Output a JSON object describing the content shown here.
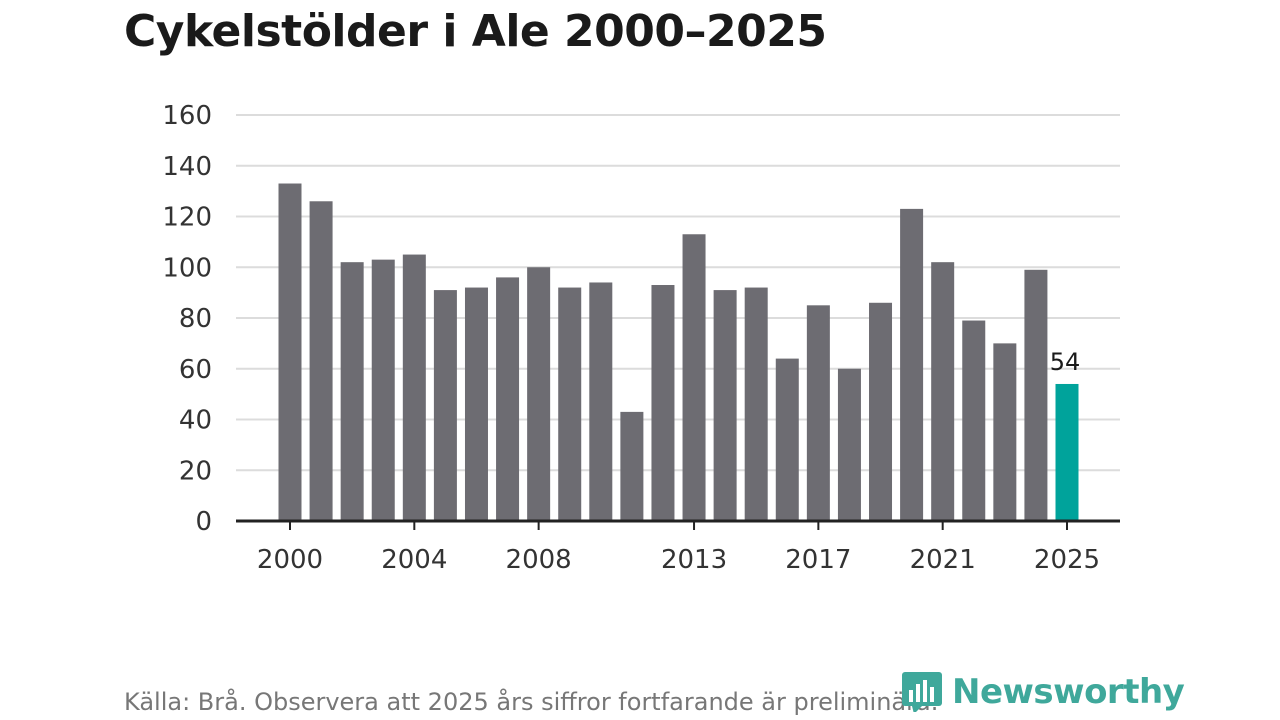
{
  "title": "Cykelstölder i Ale 2000–2025",
  "source": "Källa: Brå. Observera att 2025 års siffror fortfarande är preliminära.",
  "brand": {
    "name": "Newsworthy",
    "icon": "newsworthy-logo-icon",
    "color": "#3fa89b"
  },
  "chart_data": {
    "type": "bar",
    "title": "Cykelstölder i Ale 2000–2025",
    "xlabel": "",
    "ylabel": "",
    "categories": [
      "2000",
      "2001",
      "2002",
      "2003",
      "2004",
      "2005",
      "2006",
      "2007",
      "2008",
      "2009",
      "2010",
      "2011",
      "2012",
      "2013",
      "2014",
      "2015",
      "2016",
      "2017",
      "2018",
      "2019",
      "2020",
      "2021",
      "2022",
      "2023",
      "2024",
      "2025"
    ],
    "values": [
      133,
      126,
      102,
      103,
      105,
      91,
      92,
      96,
      100,
      92,
      94,
      43,
      93,
      113,
      91,
      92,
      64,
      85,
      60,
      86,
      123,
      102,
      79,
      70,
      99,
      54
    ],
    "x_tick_labels": [
      "2000",
      "2004",
      "2008",
      "2013",
      "2017",
      "2021",
      "2025"
    ],
    "y_ticks": [
      0,
      20,
      40,
      60,
      80,
      100,
      120,
      140,
      160
    ],
    "ylim": [
      0,
      160
    ],
    "grid": true,
    "legend": "none",
    "annotations": [
      {
        "category": "2025",
        "text": "54"
      }
    ],
    "colors": {
      "default": "#6d6c72",
      "highlight": "#00a39b",
      "highlight_category": "2025"
    }
  }
}
